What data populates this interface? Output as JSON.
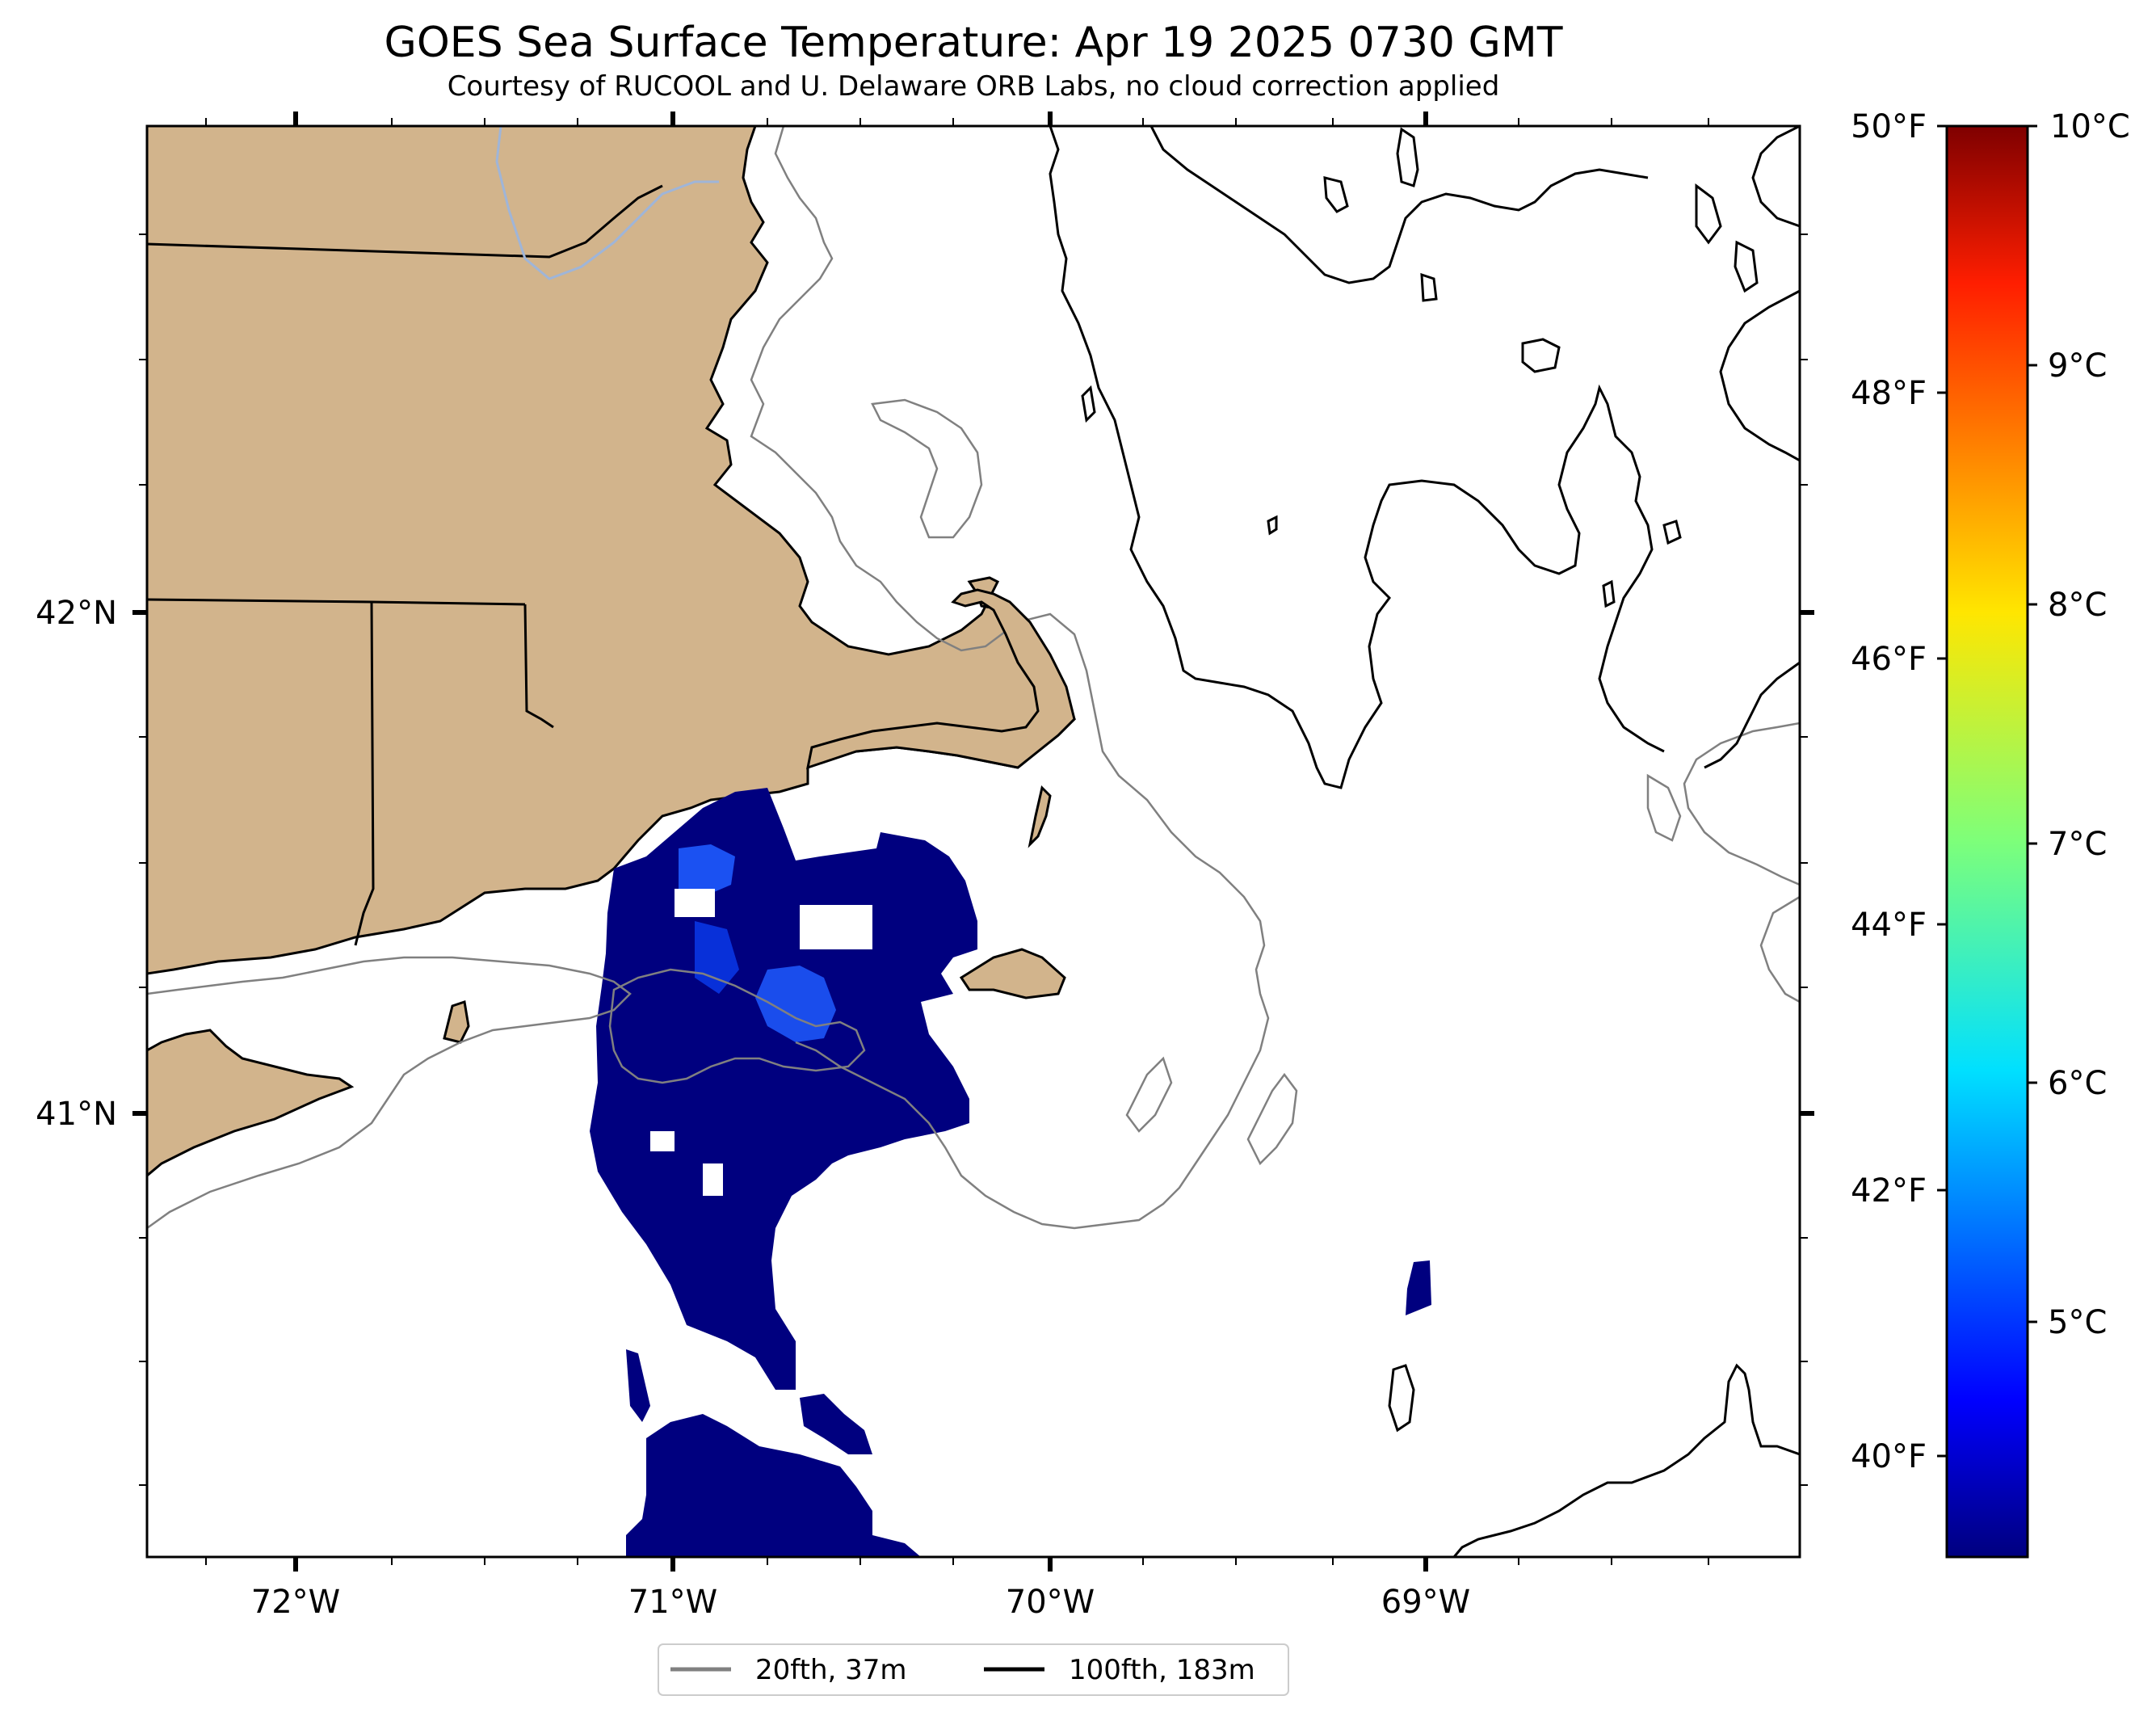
{
  "title": "GOES Sea Surface Temperature: Apr 19 2025 0730 GMT",
  "subtitle": "Courtesy of RUCOOL and U. Delaware ORB Labs, no cloud correction applied",
  "map": {
    "x_ticks": [
      "72°W",
      "71°W",
      "70°W",
      "69°W"
    ],
    "y_ticks": [
      "42°N",
      "41°N"
    ],
    "land_color": "#d2b48c",
    "coast_color": "#000000",
    "isobath_20_color": "#808080",
    "sst_cold_color": "#00007f",
    "sst_warm_color": "#1e5aff"
  },
  "legend": {
    "items": [
      {
        "label": "20fth, 37m",
        "color": "#808080"
      },
      {
        "label": "100fth, 183m",
        "color": "#000000"
      }
    ]
  },
  "colorbar": {
    "colormap": "jet",
    "fahrenheit_ticks": [
      "50°F",
      "48°F",
      "46°F",
      "44°F",
      "42°F",
      "40°F"
    ],
    "celsius_ticks": [
      "10°C",
      "9°C",
      "8°C",
      "7°C",
      "6°C",
      "5°C"
    ]
  }
}
